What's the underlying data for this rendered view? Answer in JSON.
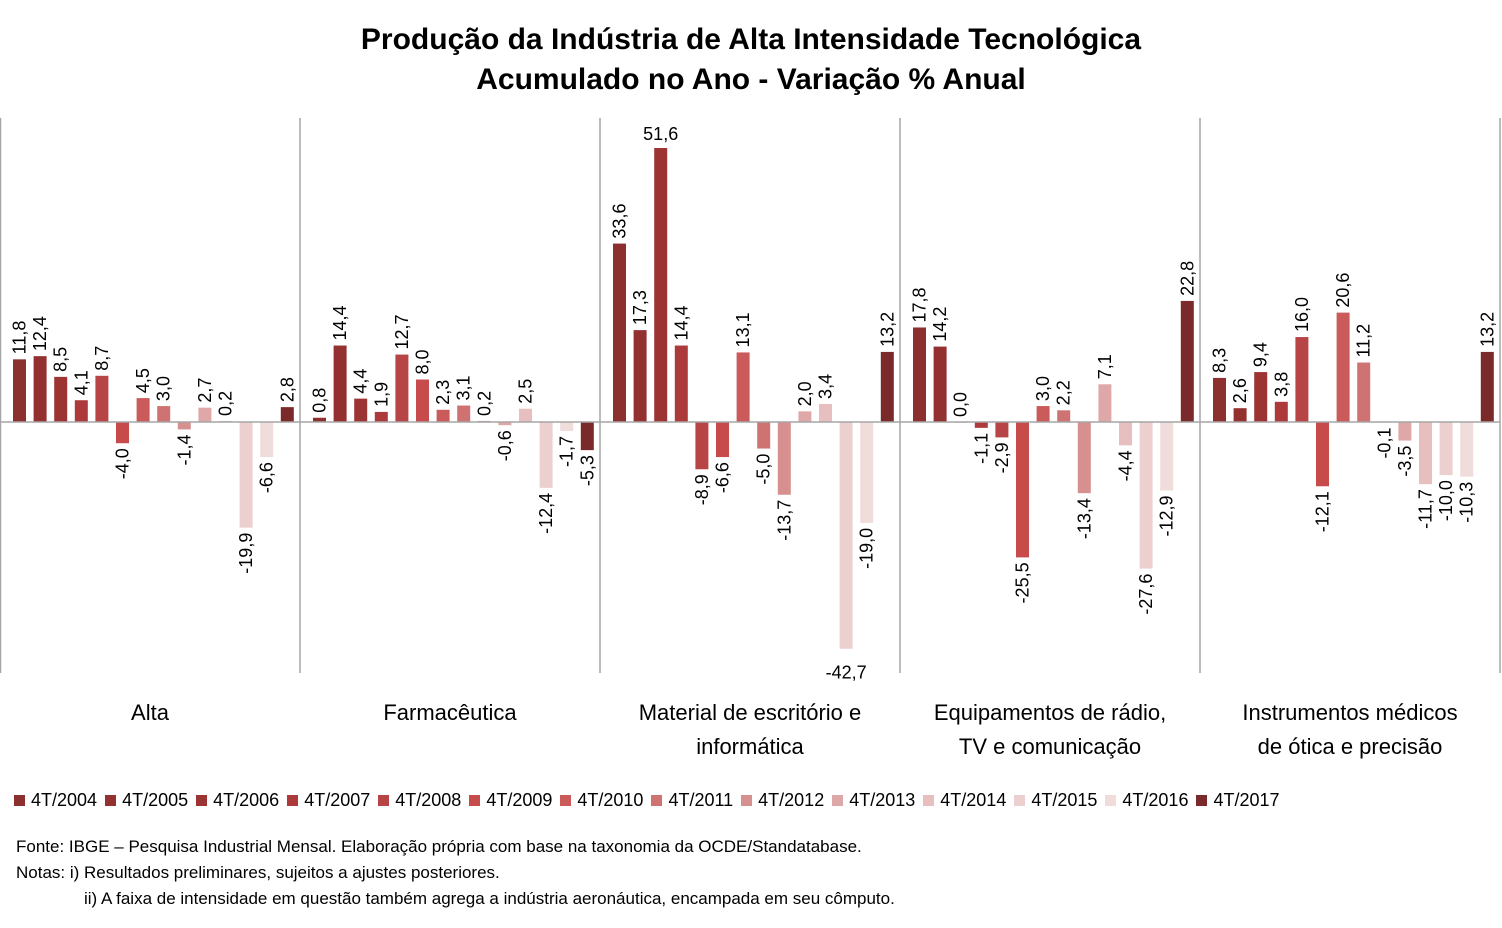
{
  "title": {
    "line1": "Produção da Indústria de Alta Intensidade Tecnológica",
    "line2": "Acumulado no Ano - Variação % Anual"
  },
  "colors": [
    "#8b2f2f",
    "#933030",
    "#9c3434",
    "#ad3a3a",
    "#b84545",
    "#c84b4b",
    "#cb5a5a",
    "#cf7272",
    "#d79090",
    "#dfa8a8",
    "#e7bfbf",
    "#ecd0d0",
    "#f1dcdc",
    "#7a2a2a"
  ],
  "chart_data": {
    "type": "bar",
    "ylim": [
      -47,
      55
    ],
    "series_names": [
      "4T/2004",
      "4T/2005",
      "4T/2006",
      "4T/2007",
      "4T/2008",
      "4T/2009",
      "4T/2010",
      "4T/2011",
      "4T/2012",
      "4T/2013",
      "4T/2014",
      "4T/2015",
      "4T/2016",
      "4T/2017"
    ],
    "groups": [
      {
        "lines": [
          "Alta"
        ],
        "values": [
          11.8,
          12.4,
          8.5,
          4.1,
          8.7,
          -4.0,
          4.5,
          3.0,
          -1.4,
          2.7,
          0.2,
          -19.9,
          -6.6,
          2.8
        ],
        "labels": [
          "11,8",
          "12,4",
          "8,5",
          "4,1",
          "8,7",
          "-4,0",
          "4,5",
          "3,0",
          "-1,4",
          "2,7",
          "0,2",
          "-19,9",
          "-6,6",
          "2,8"
        ]
      },
      {
        "lines": [
          "Farmacêutica"
        ],
        "values": [
          0.8,
          14.4,
          4.4,
          1.9,
          12.7,
          8.0,
          2.3,
          3.1,
          0.2,
          -0.6,
          2.5,
          -12.4,
          -1.7,
          -5.3
        ],
        "labels": [
          "0,8",
          "14,4",
          "4,4",
          "1,9",
          "12,7",
          "8,0",
          "2,3",
          "3,1",
          "0,2",
          "-0,6",
          "2,5",
          "-12,4",
          "-1,7",
          "-5,3"
        ]
      },
      {
        "lines": [
          "Material de escritório e",
          "informática"
        ],
        "values": [
          33.6,
          17.3,
          51.6,
          14.4,
          -8.9,
          -6.6,
          13.1,
          -5.0,
          -13.7,
          2.0,
          3.4,
          -42.7,
          -19.0,
          13.2
        ],
        "labels": [
          "33,6",
          "17,3",
          "51,6",
          "14,4",
          "-8,9",
          "-6,6",
          "13,1",
          "-5,0",
          "-13,7",
          "2,0",
          "3,4",
          "-42,7",
          "-19,0",
          "13,2"
        ]
      },
      {
        "lines": [
          "Equipamentos de rádio,",
          "TV e comunicação"
        ],
        "values": [
          17.8,
          14.2,
          0.0,
          -1.1,
          -2.9,
          -25.5,
          3.0,
          2.2,
          -13.4,
          7.1,
          -4.4,
          -27.6,
          -12.9,
          22.8
        ],
        "labels": [
          "17,8",
          "14,2",
          "0,0",
          "-1,1",
          "-2,9",
          "-25,5",
          "3,0",
          "2,2",
          "-13,4",
          "7,1",
          "-4,4",
          "-27,6",
          "-12,9",
          "22,8"
        ]
      },
      {
        "lines": [
          "Instrumentos médicos",
          "de ótica e precisão"
        ],
        "values": [
          8.3,
          2.6,
          9.4,
          3.8,
          16.0,
          -12.1,
          20.6,
          11.2,
          -0.1,
          -3.5,
          -11.7,
          -10.0,
          -10.3,
          13.2
        ],
        "labels": [
          "8,3",
          "2,6",
          "9,4",
          "3,8",
          "16,0",
          "-12,1",
          "20,6",
          "11,2",
          "-0,1",
          "-3,5",
          "-11,7",
          "-10,0",
          "-10,3",
          "13,2"
        ]
      }
    ]
  },
  "notes": {
    "source": "Fonte: IBGE – Pesquisa Industrial Mensal. Elaboração própria com base na taxonomia da OCDE/Standatabase.",
    "note1": "Notas: i) Resultados preliminares,  sujeitos a ajustes posteriores.",
    "note2": "ii) A faixa de intensidade em questão também agrega a indústria aeronáutica, encampada em seu cômputo."
  }
}
